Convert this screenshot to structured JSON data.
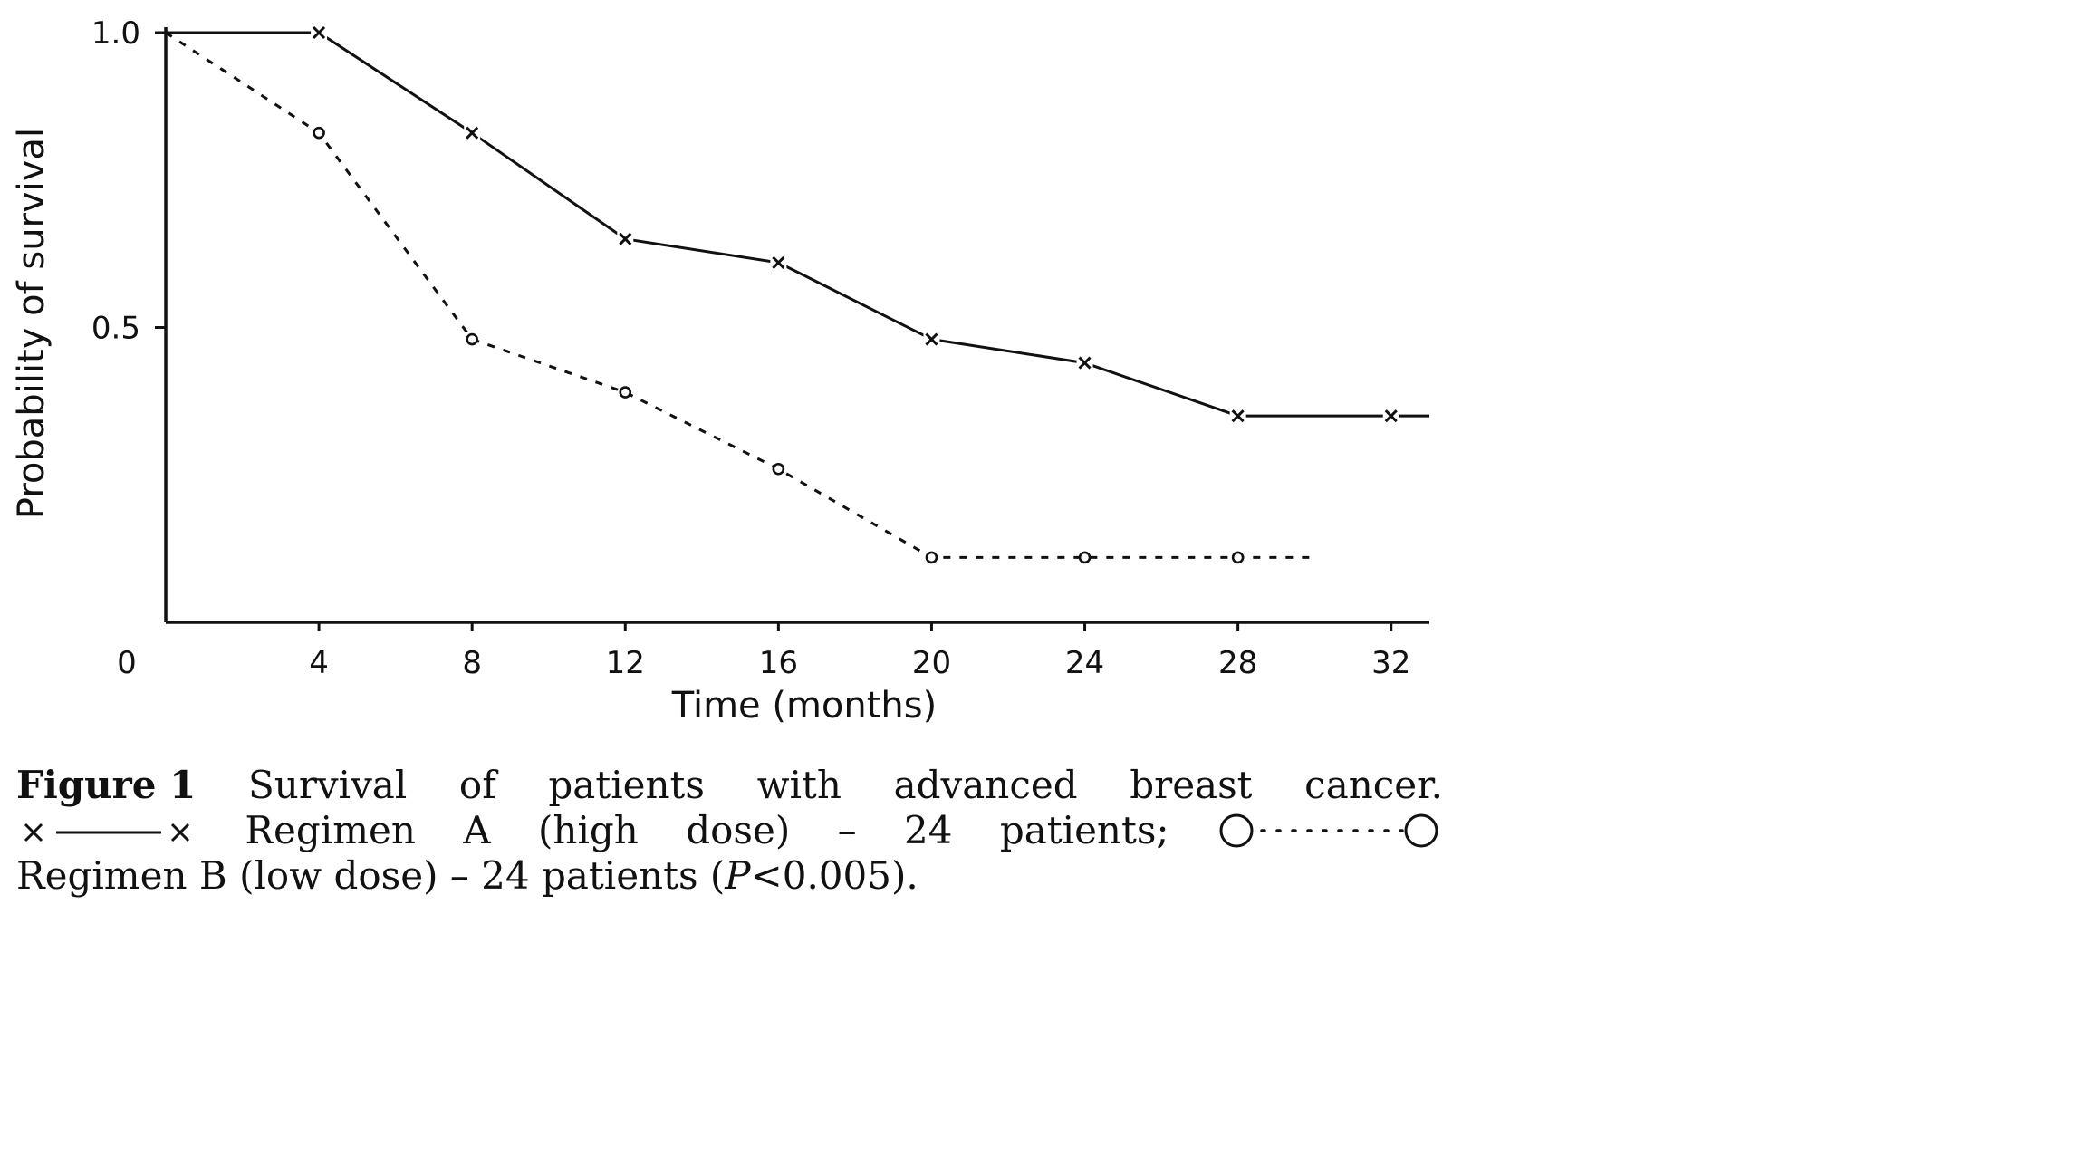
{
  "chart_data": {
    "type": "line",
    "title": "",
    "xlabel": "Time (months)",
    "ylabel": "Probability of survival",
    "xlim": [
      0,
      33
    ],
    "ylim": [
      0,
      1.0
    ],
    "x_ticks": [
      4,
      8,
      12,
      16,
      20,
      24,
      28,
      32
    ],
    "x_tick_labels": [
      "4",
      "8",
      "12",
      "16",
      "20",
      "24",
      "28",
      "32"
    ],
    "y_ticks": [
      0.5,
      1.0
    ],
    "y_tick_labels": [
      "0.5",
      "1.0"
    ],
    "origin_label": "0",
    "grid": false,
    "series": [
      {
        "line_style": "solid",
        "marker": "x",
        "points": [
          [
            0,
            1.0
          ],
          [
            4,
            1.0
          ],
          [
            8,
            0.83
          ],
          [
            12,
            0.65
          ],
          [
            16,
            0.61
          ],
          [
            20,
            0.48
          ],
          [
            24,
            0.44
          ],
          [
            28,
            0.35
          ],
          [
            32,
            0.35
          ],
          [
            33,
            0.35
          ]
        ],
        "marker_x": [
          4,
          8,
          12,
          16,
          20,
          24,
          28,
          32
        ]
      },
      {
        "line_style": "dashed",
        "marker": "o",
        "points": [
          [
            0,
            1.0
          ],
          [
            4,
            0.83
          ],
          [
            8,
            0.48
          ],
          [
            12,
            0.39
          ],
          [
            16,
            0.26
          ],
          [
            20,
            0.11
          ],
          [
            24,
            0.11
          ],
          [
            28,
            0.11
          ],
          [
            30,
            0.11
          ]
        ],
        "marker_x": [
          4,
          8,
          12,
          16,
          20,
          24,
          28
        ]
      }
    ]
  },
  "caption": {
    "figure_label": "Figure 1",
    "line1_words": [
      "Survival",
      "of",
      "patients",
      "with",
      "advanced",
      "breast",
      "cancer."
    ],
    "line2_words": [
      "Regimen",
      "A",
      "(high",
      "dose)",
      "–",
      "24",
      "patients;"
    ],
    "line3_text_before": "Regimen B (low dose) – 24 patients (",
    "line3_italic": "P",
    "line3_text_after": "<0.005)."
  }
}
